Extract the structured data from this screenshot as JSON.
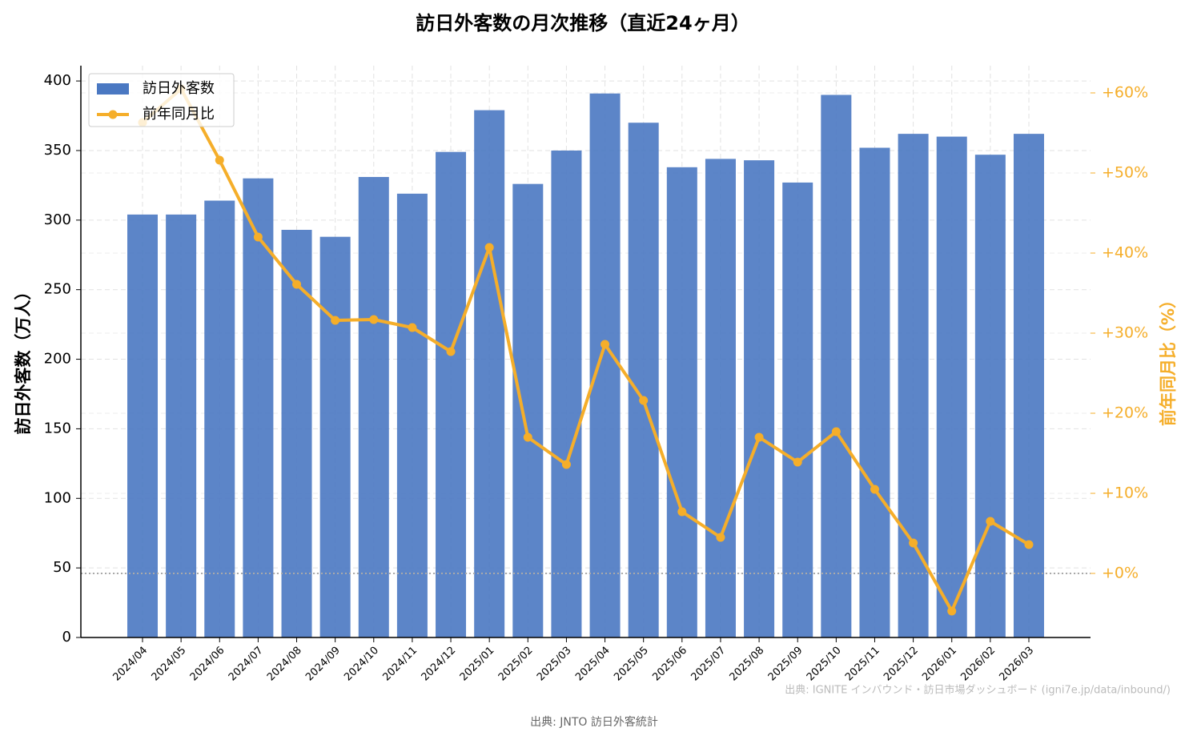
{
  "chart_data": {
    "type": "bar_line",
    "title": "訪日外客数の月次推移（直近24ヶ月）",
    "y_label": "訪日外客数（万人）",
    "y2_label": "前年同月比（%）",
    "categories": [
      "2024/04",
      "2024/05",
      "2024/06",
      "2024/07",
      "2024/08",
      "2024/09",
      "2024/10",
      "2024/11",
      "2024/12",
      "2025/01",
      "2025/02",
      "2025/03",
      "2025/04",
      "2025/05",
      "2025/06",
      "2025/07",
      "2025/08",
      "2025/09",
      "2025/10",
      "2025/11",
      "2025/12",
      "2026/01",
      "2026/02",
      "2026/03"
    ],
    "series": [
      {
        "name": "訪日外客数",
        "color": "#4a78c2",
        "type": "bar",
        "values": [
          304,
          304,
          314,
          330,
          293,
          288,
          331,
          319,
          349,
          379,
          326,
          350,
          391,
          370,
          338,
          344,
          343,
          327,
          390,
          352,
          362,
          360,
          347,
          362
        ]
      },
      {
        "name": "前年同月比",
        "color": "#f5ae2a",
        "type": "line",
        "axis": "y2",
        "values": [
          56.3,
          60.5,
          51.6,
          42,
          36.1,
          31.6,
          31.7,
          30.7,
          27.7,
          40.7,
          17,
          13.6,
          28.6,
          21.6,
          7.7,
          4.5,
          17,
          13.9,
          17.7,
          10.5,
          3.8,
          -4.7,
          6.5,
          3.6
        ]
      }
    ],
    "ylim": [
      0,
      411
    ],
    "yticks": [
      0,
      50,
      100,
      150,
      200,
      250,
      300,
      350,
      400
    ],
    "y2lim": [
      -8,
      63.4
    ],
    "y2ticks": [
      {
        "value": 0,
        "label": "+0%"
      },
      {
        "value": 10,
        "label": "+10%"
      },
      {
        "value": 20,
        "label": "+20%"
      },
      {
        "value": 30,
        "label": "+30%"
      },
      {
        "value": 40,
        "label": "+40%"
      },
      {
        "value": 50,
        "label": "+50%"
      },
      {
        "value": 60,
        "label": "+60%"
      }
    ],
    "grid": true,
    "legend": "upper-left",
    "watermark": "出典: IGNITE インバウンド・訪日市場ダッシュボード (igni7e.jp/data/inbound/)",
    "source": "出典: JNTO 訪日外客統計"
  }
}
